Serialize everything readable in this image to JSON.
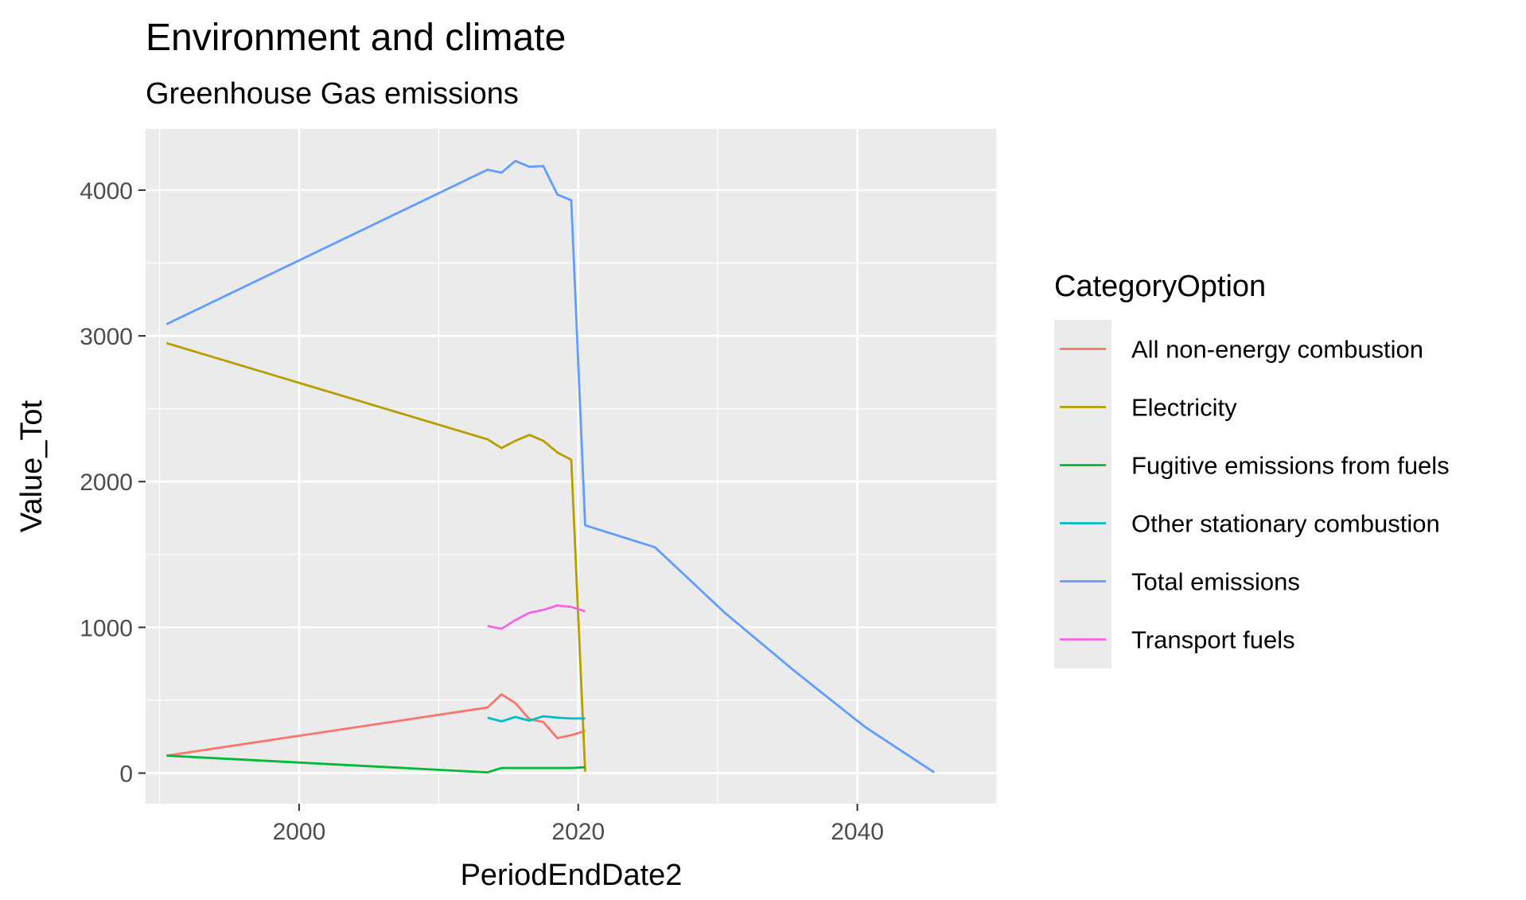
{
  "chart_data": {
    "type": "line",
    "title": "Environment and climate",
    "subtitle": "Greenhouse Gas emissions",
    "xlabel": "PeriodEndDate2",
    "ylabel": "Value_Tot",
    "xlim": [
      1989,
      2050
    ],
    "ylim": [
      -210,
      4420
    ],
    "x_ticks": [
      2000,
      2020,
      2040
    ],
    "y_ticks": [
      0,
      1000,
      2000,
      3000,
      4000
    ],
    "x_tick_labels": [
      "2000",
      "2020",
      "2040"
    ],
    "y_tick_labels": [
      "0",
      "1000",
      "2000",
      "3000",
      "4000"
    ],
    "grid": true,
    "legend_position": "right",
    "legend_title": "CategoryOption",
    "series": [
      {
        "name": "All non-energy combustion",
        "color": "#F8766D",
        "x": [
          1990.5,
          2013.5,
          2014.5,
          2015.5,
          2016.5,
          2017.5,
          2018.5,
          2019.5,
          2020.5
        ],
        "y": [
          120,
          450,
          540,
          480,
          370,
          350,
          240,
          260,
          290
        ]
      },
      {
        "name": "Electricity",
        "color": "#B79F00",
        "x": [
          1990.5,
          2013.5,
          2014.5,
          2015.5,
          2016.5,
          2017.5,
          2018.5,
          2019.5,
          2020.5
        ],
        "y": [
          2950,
          2290,
          2230,
          2280,
          2320,
          2280,
          2200,
          2150,
          10
        ]
      },
      {
        "name": "Fugitive emissions from fuels",
        "color": "#00BA38",
        "x": [
          1990.5,
          2013.5,
          2014.5,
          2015.5,
          2016.5,
          2017.5,
          2018.5,
          2019.5,
          2020.5
        ],
        "y": [
          120,
          5,
          35,
          35,
          35,
          35,
          35,
          35,
          40
        ]
      },
      {
        "name": "Other stationary combustion",
        "color": "#00BFC4",
        "x": [
          2013.5,
          2014.5,
          2015.5,
          2016.5,
          2017.5,
          2018.5,
          2019.5,
          2020.5
        ],
        "y": [
          380,
          355,
          385,
          360,
          390,
          380,
          375,
          375
        ]
      },
      {
        "name": "Total emissions",
        "color": "#619CFF",
        "x": [
          1990.5,
          2013.5,
          2014.5,
          2015.5,
          2016.5,
          2017.5,
          2018.5,
          2019.5,
          2020.5,
          2025.5,
          2030.5,
          2035.5,
          2040.5,
          2045.5
        ],
        "y": [
          3080,
          4140,
          4120,
          4200,
          4160,
          4165,
          3970,
          3930,
          1700,
          1550,
          1100,
          700,
          320,
          5
        ]
      },
      {
        "name": "Transport fuels",
        "color": "#F564E3",
        "x": [
          2013.5,
          2014.5,
          2015.5,
          2016.5,
          2017.5,
          2018.5,
          2019.5,
          2020.5
        ],
        "y": [
          1010,
          990,
          1050,
          1100,
          1120,
          1150,
          1140,
          1110
        ]
      }
    ]
  }
}
